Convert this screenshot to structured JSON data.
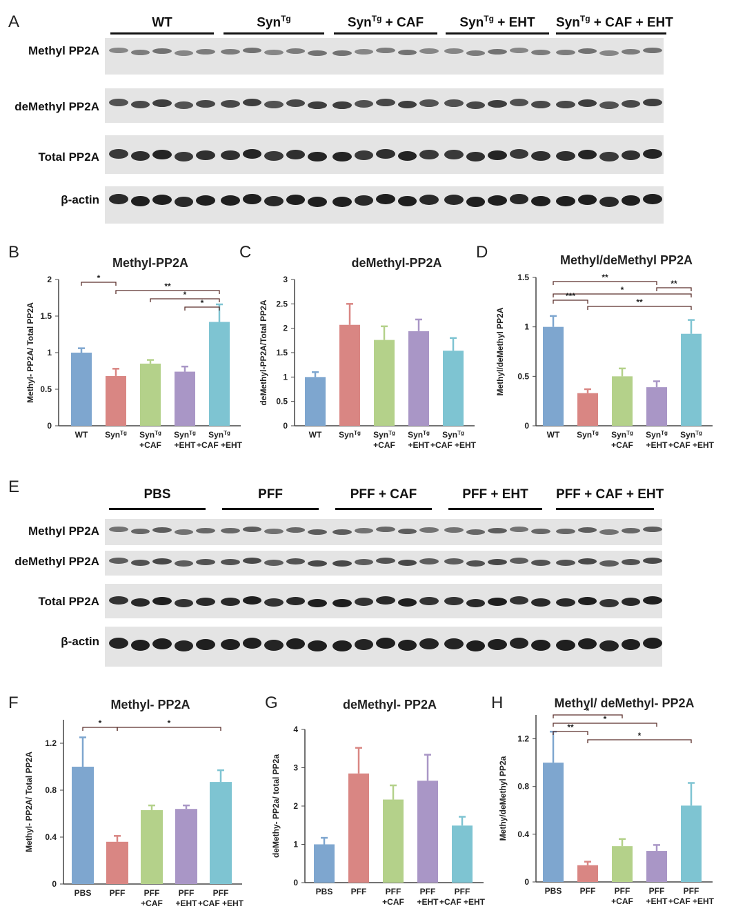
{
  "panels": {
    "A": "A",
    "B": "B",
    "C": "C",
    "D": "D",
    "E": "E",
    "F": "F",
    "G": "G",
    "H": "H"
  },
  "blot_top": {
    "groups": [
      {
        "base": "WT",
        "sup": "",
        "rest": ""
      },
      {
        "base": "Syn",
        "sup": "Tg",
        "rest": ""
      },
      {
        "base": "Syn",
        "sup": "Tg",
        "rest": " + CAF"
      },
      {
        "base": "Syn",
        "sup": "Tg",
        "rest": " + EHT"
      },
      {
        "base": "Syn",
        "sup": "Tg",
        "rest": " + CAF + EHT"
      }
    ],
    "rows": [
      "Methyl PP2A",
      "deMethyl PP2A",
      "Total PP2A",
      "β-actin"
    ]
  },
  "blot_bottom": {
    "groups": [
      "PBS",
      "PFF",
      "PFF + CAF",
      "PFF + EHT",
      "PFF + CAF + EHT"
    ],
    "rows": [
      "Methyl PP2A",
      "deMethyl PP2A",
      "Total PP2A",
      "β-actin"
    ]
  },
  "colors": {
    "blue": "#7ea6cf",
    "red": "#d98683",
    "green": "#b4d18a",
    "purple": "#a996c6",
    "cyan": "#7ec4d2",
    "bracket": "#5a2f2b"
  },
  "chart_data": [
    {
      "id": "B",
      "type": "bar",
      "title": "Methyl-PP2A",
      "ylabel": "Methyl- PP2A/ Total PP2A",
      "ylim": [
        0,
        2
      ],
      "yticks": [
        "0",
        "0.5",
        "1",
        "1.5",
        "2"
      ],
      "ytick_values": [
        0,
        0.5,
        1,
        1.5,
        2
      ],
      "categories": [
        [
          "WT"
        ],
        [
          "Syn^Tg"
        ],
        [
          "Syn^Tg",
          "+CAF"
        ],
        [
          "Syn^Tg",
          "+EHT"
        ],
        [
          "Syn^Tg",
          "+CAF +EHT"
        ]
      ],
      "values": [
        1.0,
        0.68,
        0.85,
        0.74,
        1.42
      ],
      "errors": [
        0.06,
        0.1,
        0.05,
        0.07,
        0.24
      ],
      "significance": [
        {
          "from": 0,
          "to": 1,
          "label": "*"
        },
        {
          "from": 1,
          "to": 4,
          "label": "**"
        },
        {
          "from": 2,
          "to": 4,
          "label": "*"
        },
        {
          "from": 3,
          "to": 4,
          "label": "*"
        }
      ]
    },
    {
      "id": "C",
      "type": "bar",
      "title": "deMethyl-PP2A",
      "ylabel": "deMethyl-PP2A/Total PP2A",
      "ylim": [
        0,
        3
      ],
      "yticks": [
        "0",
        "0.5",
        "1",
        "1.5",
        "2",
        "2.5",
        "3"
      ],
      "ytick_values": [
        0,
        0.5,
        1,
        1.5,
        2,
        2.5,
        3
      ],
      "categories": [
        [
          "WT"
        ],
        [
          "Syn^Tg"
        ],
        [
          "Syn^Tg",
          "+CAF"
        ],
        [
          "Syn^Tg",
          "+EHT"
        ],
        [
          "Syn^Tg",
          "+CAF +EHT"
        ]
      ],
      "values": [
        1.0,
        2.07,
        1.76,
        1.94,
        1.54
      ],
      "errors": [
        0.1,
        0.43,
        0.28,
        0.24,
        0.26
      ],
      "significance": []
    },
    {
      "id": "D",
      "type": "bar",
      "title": "Methyl/deMethyl PP2A",
      "ylabel": "Methyl/deMethyl PP2A",
      "ylim": [
        0,
        1.5
      ],
      "yticks": [
        "0",
        "0.5",
        "1",
        "1.5"
      ],
      "ytick_values": [
        0,
        0.5,
        1,
        1.5
      ],
      "categories": [
        [
          "WT"
        ],
        [
          "Syn^Tg"
        ],
        [
          "Syn^Tg",
          "+CAF"
        ],
        [
          "Syn^Tg",
          "+EHT"
        ],
        [
          "Syn^Tg",
          "+CAF +EHT"
        ]
      ],
      "values": [
        1.0,
        0.33,
        0.5,
        0.39,
        0.93
      ],
      "errors": [
        0.11,
        0.04,
        0.08,
        0.06,
        0.14
      ],
      "significance": [
        {
          "from": 0,
          "to": 3,
          "label": "**"
        },
        {
          "from": 3,
          "to": 4,
          "label": "**"
        },
        {
          "from": 0,
          "to": 4,
          "label": "*"
        },
        {
          "from": 0,
          "to": 1,
          "label": "***"
        },
        {
          "from": 1,
          "to": 4,
          "label": "**"
        }
      ]
    },
    {
      "id": "F",
      "type": "bar",
      "title": "Methyl- PP2A",
      "ylabel": "Methyl- PP2A/ Total PP2A",
      "ylim": [
        0,
        1.4
      ],
      "yticks": [
        "0",
        "0.4",
        "0.8",
        "1.2"
      ],
      "ytick_values": [
        0,
        0.4,
        0.8,
        1.2
      ],
      "categories": [
        [
          "PBS"
        ],
        [
          "PFF"
        ],
        [
          "PFF",
          "+CAF"
        ],
        [
          "PFF",
          "+EHT"
        ],
        [
          "PFF",
          "+CAF +EHT"
        ]
      ],
      "values": [
        1.0,
        0.36,
        0.63,
        0.64,
        0.87
      ],
      "errors": [
        0.25,
        0.05,
        0.04,
        0.03,
        0.1
      ],
      "significance": [
        {
          "from": 0,
          "to": 1,
          "label": "*"
        },
        {
          "from": 1,
          "to": 4,
          "label": "*"
        }
      ]
    },
    {
      "id": "G",
      "type": "bar",
      "title": "deMethyl- PP2A",
      "ylabel": "deMethy- PP2a/ total PP2a",
      "ylim": [
        0,
        4
      ],
      "yticks": [
        "0",
        "1",
        "2",
        "3",
        "4"
      ],
      "ytick_values": [
        0,
        1,
        2,
        3,
        4
      ],
      "categories": [
        [
          "PBS"
        ],
        [
          "PFF"
        ],
        [
          "PFF",
          "+CAF"
        ],
        [
          "PFF",
          "+EHT"
        ],
        [
          "PFF",
          "+CAF +EHT"
        ]
      ],
      "values": [
        1.0,
        2.85,
        2.17,
        2.66,
        1.49
      ],
      "errors": [
        0.17,
        0.67,
        0.37,
        0.68,
        0.23
      ],
      "significance": []
    },
    {
      "id": "H",
      "type": "bar",
      "title": "Methyl/ deMethyl- PP2A",
      "ylabel": "Methy/deMethyl PP2a",
      "ylim": [
        0,
        1.4
      ],
      "yticks": [
        "0",
        "0.4",
        "0.8",
        "1.2"
      ],
      "ytick_values": [
        0,
        0.4,
        0.8,
        1.2
      ],
      "categories": [
        [
          "PBS"
        ],
        [
          "PFF"
        ],
        [
          "PFF",
          "+CAF"
        ],
        [
          "PFF",
          "+EHT"
        ],
        [
          "PFF",
          "+CAF +EHT"
        ]
      ],
      "values": [
        1.0,
        0.14,
        0.3,
        0.26,
        0.64
      ],
      "errors": [
        0.26,
        0.03,
        0.06,
        0.05,
        0.19
      ],
      "significance": [
        {
          "from": 0,
          "to": 2,
          "label": "*"
        },
        {
          "from": 0,
          "to": 3,
          "label": "*"
        },
        {
          "from": 0,
          "to": 1,
          "label": "**"
        },
        {
          "from": 1,
          "to": 4,
          "label": "*"
        }
      ]
    }
  ]
}
